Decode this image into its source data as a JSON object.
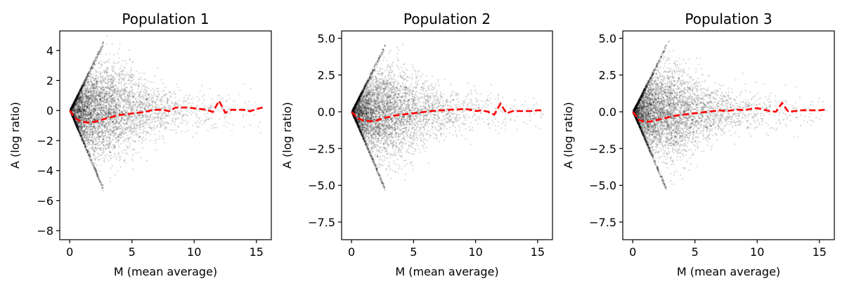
{
  "chart_data": [
    {
      "type": "scatter",
      "title": "Population 1",
      "xlabel": "M (mean average)",
      "ylabel": "A (log ratio)",
      "xlim": [
        -0.8,
        16.2
      ],
      "ylim": [
        -8.6,
        5.3
      ],
      "xticks": [
        0,
        5,
        10,
        15
      ],
      "xtick_labels": [
        "0",
        "5",
        "10",
        "15"
      ],
      "yticks": [
        4,
        2,
        0,
        -2,
        -4,
        -6,
        -8
      ],
      "ytick_labels": [
        "4",
        "2",
        "0",
        "−2",
        "−4",
        "−6",
        "−8"
      ],
      "grid": false,
      "series": [
        {
          "kind": "scatter",
          "color": "#000000",
          "opacity": 0.15,
          "points_shown": "dense cloud of several thousand points fanning out from (0,0); upper edge A≈1.7·M up to M≈2.8, lower edge A≈−2.0·M up to M≈2.7",
          "approx_count": 6000
        },
        {
          "kind": "trend-line",
          "style": "dashed",
          "color": "#ff0000",
          "x": [
            0,
            0.5,
            1,
            1.5,
            2,
            2.5,
            3,
            3.5,
            4,
            4.5,
            5,
            5.5,
            6,
            6.5,
            7,
            7.5,
            8,
            8.5,
            9,
            9.5,
            10,
            10.5,
            11,
            11.5,
            12,
            12.5,
            13,
            13.5,
            14,
            14.5,
            15,
            15.5
          ],
          "y": [
            0,
            -0.55,
            -0.75,
            -0.8,
            -0.75,
            -0.65,
            -0.5,
            -0.4,
            -0.3,
            -0.25,
            -0.2,
            -0.15,
            -0.1,
            0,
            0.05,
            0.05,
            -0.05,
            0.2,
            0.2,
            0.2,
            0.15,
            0.1,
            0.05,
            -0.1,
            0.65,
            -0.15,
            0.05,
            0.05,
            0.05,
            -0.05,
            0.1,
            0.2
          ]
        }
      ]
    },
    {
      "type": "scatter",
      "title": "Population 2",
      "xlabel": "M (mean average)",
      "ylabel": "A (log ratio)",
      "xlim": [
        -0.8,
        16.2
      ],
      "ylim": [
        -8.7,
        5.5
      ],
      "xticks": [
        0,
        5,
        10,
        15
      ],
      "xtick_labels": [
        "0",
        "5",
        "10",
        "15"
      ],
      "yticks": [
        5.0,
        2.5,
        0.0,
        -2.5,
        -5.0,
        -7.5
      ],
      "ytick_labels": [
        "5.0",
        "2.5",
        "0.0",
        "−2.5",
        "−5.0",
        "−7.5"
      ],
      "grid": false,
      "series": [
        {
          "kind": "scatter",
          "color": "#000000",
          "opacity": 0.15,
          "points_shown": "dense cloud of several thousand points fanning out from (0,0); upper edge A≈1.6·M up to M≈2.6, lower edge A≈−2.0·M up to M≈2.9",
          "approx_count": 6000
        },
        {
          "kind": "trend-line",
          "style": "dashed",
          "color": "#ff0000",
          "x": [
            0,
            0.5,
            1,
            1.5,
            2,
            2.5,
            3,
            3.5,
            4,
            4.5,
            5,
            5.5,
            6,
            6.5,
            7,
            7.5,
            8,
            8.5,
            9,
            9.5,
            10,
            10.5,
            11,
            11.5,
            12,
            12.5,
            13,
            13.5,
            14,
            14.5,
            15,
            15.5
          ],
          "y": [
            0,
            -0.45,
            -0.6,
            -0.65,
            -0.6,
            -0.45,
            -0.35,
            -0.25,
            -0.2,
            -0.15,
            -0.1,
            -0.05,
            0,
            0.05,
            0.1,
            0.1,
            0.15,
            0.15,
            0.2,
            0.15,
            0.05,
            0.1,
            0,
            -0.2,
            0.55,
            -0.1,
            0.05,
            0.05,
            0.05,
            0.05,
            0.1,
            0.1
          ]
        }
      ]
    },
    {
      "type": "scatter",
      "title": "Population 3",
      "xlabel": "M (mean average)",
      "ylabel": "A (log ratio)",
      "xlim": [
        -0.8,
        16.2
      ],
      "ylim": [
        -8.7,
        5.5
      ],
      "xticks": [
        0,
        5,
        10,
        15
      ],
      "xtick_labels": [
        "0",
        "5",
        "10",
        "15"
      ],
      "yticks": [
        5.0,
        2.5,
        0.0,
        -2.5,
        -5.0,
        -7.5
      ],
      "ytick_labels": [
        "5.0",
        "2.5",
        "0.0",
        "−2.5",
        "−5.0",
        "−7.5"
      ],
      "grid": false,
      "series": [
        {
          "kind": "scatter",
          "color": "#000000",
          "opacity": 0.15,
          "points_shown": "dense cloud of several thousand points fanning out from (0,0); upper edge A≈1.7·M up to M≈2.6, lower edge A≈−2.0·M up to M≈3.0",
          "approx_count": 6000
        },
        {
          "kind": "trend-line",
          "style": "dashed",
          "color": "#ff0000",
          "x": [
            0,
            0.5,
            1,
            1.5,
            2,
            2.5,
            3,
            3.5,
            4,
            4.5,
            5,
            5.5,
            6,
            6.5,
            7,
            7.5,
            8,
            8.5,
            9,
            9.5,
            10,
            10.5,
            11,
            11.5,
            12,
            12.5,
            13,
            13.5,
            14,
            14.5,
            15,
            15.5
          ],
          "y": [
            0,
            -0.55,
            -0.7,
            -0.65,
            -0.55,
            -0.45,
            -0.35,
            -0.25,
            -0.2,
            -0.15,
            -0.1,
            -0.05,
            0,
            0.05,
            0.1,
            0.05,
            0.1,
            0.15,
            0.1,
            0.2,
            0.25,
            0.15,
            0.05,
            0,
            0.6,
            0,
            0.05,
            0.1,
            0.1,
            0.1,
            0.1,
            0.15
          ]
        }
      ]
    }
  ]
}
